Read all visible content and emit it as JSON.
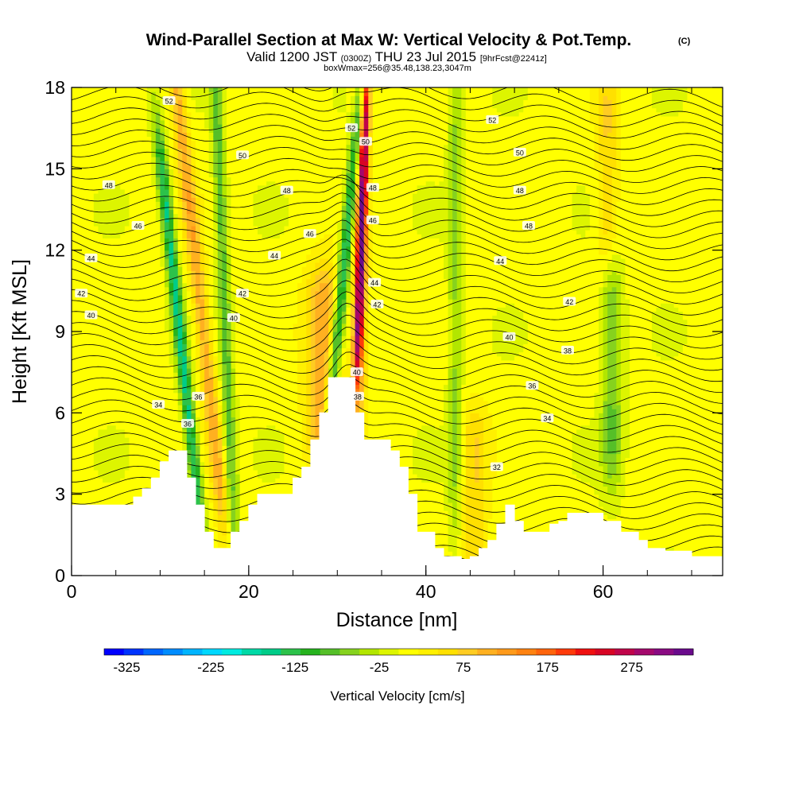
{
  "chart_data": {
    "type": "heatmap",
    "title": {
      "main": "Wind-Parallel Section at Max W: Vertical Velocity & Pot.Temp.",
      "copyright": "(C)",
      "subtitle_parts": [
        "Valid 1200 JST ",
        "(0300Z)",
        " THU 23 Jul 2015 ",
        "[9hrFcst@2241z]"
      ],
      "info": "boxWmax=256@35.48,138.23,3047m"
    },
    "xlabel": "Distance [nm]",
    "ylabel": "Height [Kft MSL]",
    "xlim": [
      0,
      73.5
    ],
    "ylim": [
      0,
      18
    ],
    "x_ticks": [
      0,
      20,
      40,
      60
    ],
    "x_tick_labels": [
      "0",
      "20",
      "40",
      "60"
    ],
    "x_minor_step": 5,
    "y_ticks": [
      0,
      3,
      6,
      9,
      12,
      15,
      18
    ],
    "y_tick_labels": [
      "0",
      "3",
      "6",
      "9",
      "12",
      "15",
      "18"
    ],
    "colorbar": {
      "label": "Vertical Velocity [cm/s]",
      "ticks": [
        "-325",
        "-225",
        "-125",
        "-25",
        "75",
        "175",
        "275"
      ],
      "tick_values": [
        -325,
        -225,
        -125,
        -25,
        75,
        175,
        275
      ],
      "range": [
        -350,
        350
      ],
      "colors": [
        "#0000ff",
        "#0033ff",
        "#0066ff",
        "#008cff",
        "#00b4ff",
        "#00d8ff",
        "#00ebe0",
        "#00d9a6",
        "#00cc88",
        "#2cc24a",
        "#26b31e",
        "#55bf28",
        "#86d21e",
        "#b2e600",
        "#ddf500",
        "#ffff00",
        "#fff000",
        "#ffe000",
        "#ffcc22",
        "#ffb020",
        "#ff9a1a",
        "#ff8210",
        "#ff640c",
        "#ff3a0a",
        "#f01010",
        "#d80424",
        "#c0044a",
        "#a4086c",
        "#8a0a82",
        "#6a0a8c"
      ]
    },
    "terrain": [
      [
        0,
        2.6
      ],
      [
        7,
        2.6
      ],
      [
        7,
        2.9
      ],
      [
        8,
        2.9
      ],
      [
        8,
        3.2
      ],
      [
        9,
        3.2
      ],
      [
        9,
        3.6
      ],
      [
        10,
        3.6
      ],
      [
        10,
        4.2
      ],
      [
        11,
        4.2
      ],
      [
        11,
        4.6
      ],
      [
        13,
        4.6
      ],
      [
        13,
        3.6
      ],
      [
        14,
        3.6
      ],
      [
        14,
        2.6
      ],
      [
        15,
        2.6
      ],
      [
        15,
        1.6
      ],
      [
        16,
        1.6
      ],
      [
        16,
        1.0
      ],
      [
        18,
        1.0
      ],
      [
        18,
        1.6
      ],
      [
        19,
        1.6
      ],
      [
        19,
        2.0
      ],
      [
        20,
        2.0
      ],
      [
        20,
        2.6
      ],
      [
        21,
        2.6
      ],
      [
        21,
        3.0
      ],
      [
        25,
        3.0
      ],
      [
        25,
        3.6
      ],
      [
        26,
        3.6
      ],
      [
        26,
        4.0
      ],
      [
        27,
        4.0
      ],
      [
        27,
        5.0
      ],
      [
        28,
        5.0
      ],
      [
        28,
        6.0
      ],
      [
        29,
        6.0
      ],
      [
        29,
        7.3
      ],
      [
        32,
        7.3
      ],
      [
        32,
        6.0
      ],
      [
        33,
        6.0
      ],
      [
        33,
        5.0
      ],
      [
        36,
        5.0
      ],
      [
        36,
        4.6
      ],
      [
        37,
        4.6
      ],
      [
        37,
        4.0
      ],
      [
        38,
        4.0
      ],
      [
        38,
        3.0
      ],
      [
        39,
        3.0
      ],
      [
        39,
        1.6
      ],
      [
        41,
        1.6
      ],
      [
        41,
        1.0
      ],
      [
        42,
        1.0
      ],
      [
        42,
        0.7
      ],
      [
        44,
        0.7
      ],
      [
        44,
        0.6
      ],
      [
        45,
        0.6
      ],
      [
        45,
        0.7
      ],
      [
        46,
        0.7
      ],
      [
        46,
        1.0
      ],
      [
        47,
        1.0
      ],
      [
        47,
        1.3
      ],
      [
        48,
        1.3
      ],
      [
        48,
        1.9
      ],
      [
        49,
        1.9
      ],
      [
        49,
        2.6
      ],
      [
        50,
        2.6
      ],
      [
        50,
        2.0
      ],
      [
        51,
        2.0
      ],
      [
        51,
        1.6
      ],
      [
        54,
        1.6
      ],
      [
        54,
        1.9
      ],
      [
        55,
        1.9
      ],
      [
        55,
        2.0
      ],
      [
        56,
        2.0
      ],
      [
        56,
        2.3
      ],
      [
        60,
        2.3
      ],
      [
        60,
        2.0
      ],
      [
        62,
        2.0
      ],
      [
        62,
        1.6
      ],
      [
        64,
        1.6
      ],
      [
        64,
        1.3
      ],
      [
        65,
        1.3
      ],
      [
        65,
        1.0
      ],
      [
        67,
        1.0
      ],
      [
        67,
        0.9
      ],
      [
        70,
        0.9
      ],
      [
        70,
        0.7
      ],
      [
        73.5,
        0.7
      ]
    ],
    "velocity_features": [
      {
        "x": 32.6,
        "y0": 8.5,
        "y1": 18,
        "w": 83,
        "sx": 0.9,
        "sy": 3.0,
        "tilt": 0.0
      },
      {
        "x": 30.9,
        "y0": 6.8,
        "y1": 17,
        "w": -165,
        "sx": 0.7,
        "sy": 3.5,
        "tilt": 0.3
      },
      {
        "x": 32.8,
        "y0": 9.5,
        "y1": 17,
        "w": 256,
        "sx": 0.5,
        "sy": 2.8,
        "tilt": 0.1
      },
      {
        "x": 14.2,
        "y0": 4.0,
        "y1": 18,
        "w": 100,
        "sx": 0.9,
        "sy": 3.0,
        "tilt": -0.33
      },
      {
        "x": 12.2,
        "y0": 4.0,
        "y1": 14,
        "w": -160,
        "sx": 0.7,
        "sy": 3.0,
        "tilt": -0.33
      },
      {
        "x": 28.5,
        "y0": 5.5,
        "y1": 10,
        "w": 110,
        "sx": 2.0,
        "sy": 1.6,
        "tilt": 0.0
      },
      {
        "x": 17.2,
        "y0": 3.0,
        "y1": 18,
        "w": -90,
        "sx": 0.7,
        "sy": 3.5,
        "tilt": -0.12
      },
      {
        "x": 43.3,
        "y0": 4.0,
        "y1": 18,
        "w": -60,
        "sx": 0.8,
        "sy": 3.5,
        "tilt": 0.0
      },
      {
        "x": 45.5,
        "y0": 1.0,
        "y1": 5,
        "w": 60,
        "sx": 1.5,
        "sy": 1.5,
        "tilt": 0.0
      },
      {
        "x": 61.0,
        "y0": 5.0,
        "y1": 10,
        "w": -80,
        "sx": 1.2,
        "sy": 2.0,
        "tilt": 0.0
      },
      {
        "x": 60.5,
        "y0": 13.0,
        "y1": 17,
        "w": 60,
        "sx": 1.2,
        "sy": 2.0,
        "tilt": 0.0
      }
    ],
    "theta_labels": [
      {
        "text": "52",
        "x": 11.0,
        "y": 17.5
      },
      {
        "text": "50",
        "x": 19.3,
        "y": 15.5
      },
      {
        "text": "48",
        "x": 4.2,
        "y": 14.4
      },
      {
        "text": "48",
        "x": 24.3,
        "y": 14.2
      },
      {
        "text": "46",
        "x": 7.5,
        "y": 12.9
      },
      {
        "text": "46",
        "x": 26.9,
        "y": 12.6
      },
      {
        "text": "44",
        "x": 2.2,
        "y": 11.7
      },
      {
        "text": "44",
        "x": 22.9,
        "y": 11.8
      },
      {
        "text": "42",
        "x": 1.1,
        "y": 10.4
      },
      {
        "text": "42",
        "x": 19.3,
        "y": 10.4
      },
      {
        "text": "40",
        "x": 2.2,
        "y": 9.6
      },
      {
        "text": "40",
        "x": 18.3,
        "y": 9.5
      },
      {
        "text": "34",
        "x": 9.8,
        "y": 6.3
      },
      {
        "text": "36",
        "x": 14.3,
        "y": 6.6
      },
      {
        "text": "36",
        "x": 13.1,
        "y": 5.6
      },
      {
        "text": "52",
        "x": 31.6,
        "y": 16.5
      },
      {
        "text": "50",
        "x": 33.2,
        "y": 16.0
      },
      {
        "text": "48",
        "x": 34.0,
        "y": 14.3
      },
      {
        "text": "46",
        "x": 34.0,
        "y": 13.1
      },
      {
        "text": "44",
        "x": 34.2,
        "y": 10.8
      },
      {
        "text": "42",
        "x": 34.5,
        "y": 10.0
      },
      {
        "text": "40",
        "x": 32.2,
        "y": 7.5
      },
      {
        "text": "38",
        "x": 32.3,
        "y": 6.6
      },
      {
        "text": "52",
        "x": 47.5,
        "y": 16.8
      },
      {
        "text": "50",
        "x": 50.6,
        "y": 15.6
      },
      {
        "text": "48",
        "x": 50.6,
        "y": 14.2
      },
      {
        "text": "48",
        "x": 51.6,
        "y": 12.9
      },
      {
        "text": "44",
        "x": 48.4,
        "y": 11.6
      },
      {
        "text": "42",
        "x": 56.2,
        "y": 10.1
      },
      {
        "text": "40",
        "x": 49.4,
        "y": 8.8
      },
      {
        "text": "38",
        "x": 56.0,
        "y": 8.3
      },
      {
        "text": "36",
        "x": 52.0,
        "y": 7.0
      },
      {
        "text": "34",
        "x": 53.7,
        "y": 5.8
      },
      {
        "text": "32",
        "x": 48.0,
        "y": 4.0
      }
    ]
  }
}
